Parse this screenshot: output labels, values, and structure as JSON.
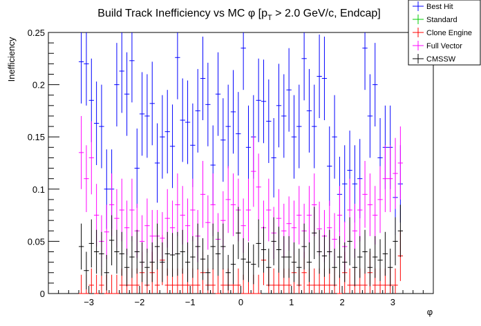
{
  "chart_data": {
    "type": "scatter",
    "title_main": "Build Track Inefficiency vs MC ",
    "title_phi": "φ",
    "title_open": " [p",
    "title_sub": "T",
    "title_rest": " > 2.0 GeV/c, Endcap]",
    "xlabel": "φ",
    "ylabel": "Inefficiency",
    "xlim": [
      -3.8,
      3.8
    ],
    "ylim": [
      0,
      0.25
    ],
    "x_ticks": [
      -3,
      -2,
      -1,
      0,
      1,
      2,
      3
    ],
    "x_tick_labels": [
      "−3",
      "−2",
      "−1",
      "0",
      "1",
      "2",
      "3"
    ],
    "y_ticks": [
      0,
      0.05,
      0.1,
      0.15,
      0.2,
      0.25
    ],
    "y_tick_labels": [
      "0",
      "0.05",
      "0.1",
      "0.15",
      "0.2",
      "0.25"
    ],
    "grid": false,
    "legend_position": "top-right",
    "legend": [
      {
        "name": "Best Hit",
        "color": "#0000ff"
      },
      {
        "name": "Standard",
        "color": "#00cc00"
      },
      {
        "name": "Clone Engine",
        "color": "#ff0000"
      },
      {
        "name": "Full Vector",
        "color": "#ff00ff"
      },
      {
        "name": "CMSSW",
        "color": "#000000"
      }
    ],
    "x": [
      -3.15,
      -3.05,
      -2.95,
      -2.85,
      -2.75,
      -2.65,
      -2.55,
      -2.45,
      -2.35,
      -2.25,
      -2.15,
      -2.05,
      -1.95,
      -1.85,
      -1.75,
      -1.65,
      -1.55,
      -1.45,
      -1.35,
      -1.25,
      -1.15,
      -1.05,
      -0.95,
      -0.85,
      -0.75,
      -0.65,
      -0.55,
      -0.45,
      -0.35,
      -0.25,
      -0.15,
      -0.05,
      0.05,
      0.15,
      0.25,
      0.35,
      0.45,
      0.55,
      0.65,
      0.75,
      0.85,
      0.95,
      1.05,
      1.15,
      1.25,
      1.35,
      1.45,
      1.55,
      1.65,
      1.75,
      1.85,
      1.95,
      2.05,
      2.15,
      2.25,
      2.35,
      2.45,
      2.55,
      2.65,
      2.75,
      2.85,
      2.95,
      3.05,
      3.15
    ],
    "x_err": 0.05,
    "series": [
      {
        "name": "Best Hit",
        "color": "#0000ff",
        "y": [
          0.222,
          0.22,
          0.185,
          0.163,
          0.16,
          0.1,
          0.1,
          0.2,
          0.213,
          0.191,
          0.223,
          0.12,
          0.172,
          0.17,
          0.182,
          0.125,
          0.15,
          0.155,
          0.141,
          0.226,
          0.166,
          0.164,
          0.142,
          0.175,
          0.206,
          0.181,
          0.123,
          0.191,
          0.147,
          0.16,
          0.174,
          0.153,
          0.235,
          0.14,
          0.15,
          0.185,
          0.184,
          0.165,
          0.13,
          0.18,
          0.17,
          0.195,
          0.15,
          0.16,
          0.225,
          0.175,
          0.16,
          0.208,
          0.206,
          0.122,
          0.15,
          0.095,
          0.105,
          0.118,
          0.105,
          0.11,
          0.235,
          0.17,
          0.2,
          0.13,
          0.14,
          0.14,
          0.092,
          0.105
        ],
        "err": [
          0.04,
          0.04,
          0.04,
          0.04,
          0.04,
          0.038,
          0.038,
          0.04,
          0.04,
          0.04,
          0.04,
          0.038,
          0.04,
          0.04,
          0.04,
          0.038,
          0.04,
          0.04,
          0.04,
          0.04,
          0.04,
          0.04,
          0.04,
          0.04,
          0.04,
          0.04,
          0.038,
          0.04,
          0.04,
          0.04,
          0.04,
          0.04,
          0.04,
          0.04,
          0.04,
          0.04,
          0.04,
          0.04,
          0.038,
          0.04,
          0.04,
          0.04,
          0.04,
          0.04,
          0.04,
          0.04,
          0.04,
          0.04,
          0.04,
          0.038,
          0.04,
          0.036,
          0.037,
          0.038,
          0.037,
          0.038,
          0.04,
          0.04,
          0.04,
          0.038,
          0.04,
          0.04,
          0.036,
          0.037
        ]
      },
      {
        "name": "Standard",
        "color": "#00cc00",
        "y": [],
        "err": []
      },
      {
        "name": "Clone Engine",
        "color": "#ff0000",
        "y": [
          0.0,
          0.0,
          0.008,
          0.0,
          0.008,
          0.0,
          0.0,
          0.0,
          0.008,
          0.008,
          0.008,
          0.008,
          0.02,
          0.008,
          0.02,
          0.008,
          0.032,
          0.008,
          0.008,
          0.008,
          0.008,
          0.008,
          0.008,
          0.008,
          0.02,
          0.008,
          0.008,
          0.0,
          0.008,
          0.008,
          0.008,
          0.008,
          0.0,
          0.0,
          0.0,
          0.0,
          0.032,
          0.008,
          0.008,
          0.008,
          0.008,
          0.008,
          0.02,
          0.008,
          0.02,
          0.008,
          0.008,
          0.008,
          0.008,
          0.008,
          0.008,
          0.0,
          0.02,
          0.008,
          0.008,
          0.008,
          0.008,
          0.02,
          0.008,
          0.008,
          0.008,
          0.008,
          0.008,
          0.036
        ],
        "err": [
          0.018,
          0.018,
          0.016,
          0.018,
          0.016,
          0.018,
          0.018,
          0.018,
          0.016,
          0.016,
          0.016,
          0.016,
          0.02,
          0.016,
          0.02,
          0.016,
          0.024,
          0.016,
          0.016,
          0.016,
          0.016,
          0.016,
          0.016,
          0.016,
          0.02,
          0.016,
          0.016,
          0.018,
          0.016,
          0.016,
          0.016,
          0.016,
          0.018,
          0.018,
          0.018,
          0.018,
          0.024,
          0.016,
          0.016,
          0.016,
          0.016,
          0.016,
          0.02,
          0.016,
          0.02,
          0.016,
          0.016,
          0.016,
          0.016,
          0.016,
          0.016,
          0.018,
          0.02,
          0.016,
          0.016,
          0.016,
          0.016,
          0.02,
          0.016,
          0.016,
          0.016,
          0.016,
          0.016,
          0.024
        ]
      },
      {
        "name": "Full Vector",
        "color": "#ff00ff",
        "y": [
          0.135,
          0.11,
          0.13,
          0.075,
          0.05,
          0.059,
          0.085,
          0.072,
          0.08,
          0.063,
          0.08,
          0.06,
          0.05,
          0.065,
          0.055,
          0.055,
          0.053,
          0.072,
          0.063,
          0.085,
          0.075,
          0.065,
          0.08,
          0.055,
          0.095,
          0.068,
          0.085,
          0.052,
          0.07,
          0.09,
          0.085,
          0.08,
          0.065,
          0.08,
          0.117,
          0.102,
          0.063,
          0.08,
          0.058,
          0.072,
          0.06,
          0.067,
          0.063,
          0.075,
          0.06,
          0.075,
          0.085,
          0.062,
          0.055,
          0.063,
          0.052,
          0.075,
          0.045,
          0.08,
          0.06,
          0.08,
          0.095,
          0.085,
          0.075,
          0.09,
          0.11,
          0.11,
          0.115,
          0.125
        ],
        "err": [
          0.035,
          0.032,
          0.035,
          0.03,
          0.025,
          0.026,
          0.03,
          0.028,
          0.03,
          0.026,
          0.03,
          0.026,
          0.025,
          0.026,
          0.025,
          0.025,
          0.025,
          0.028,
          0.026,
          0.03,
          0.028,
          0.026,
          0.03,
          0.025,
          0.032,
          0.026,
          0.03,
          0.025,
          0.028,
          0.032,
          0.03,
          0.03,
          0.026,
          0.03,
          0.034,
          0.032,
          0.026,
          0.03,
          0.025,
          0.028,
          0.026,
          0.026,
          0.026,
          0.028,
          0.026,
          0.028,
          0.03,
          0.026,
          0.025,
          0.026,
          0.025,
          0.028,
          0.024,
          0.03,
          0.026,
          0.03,
          0.032,
          0.03,
          0.028,
          0.032,
          0.032,
          0.032,
          0.034,
          0.035
        ]
      },
      {
        "name": "CMSSW",
        "color": "#000000",
        "y": [
          0.045,
          0.022,
          0.048,
          0.04,
          0.038,
          0.02,
          0.051,
          0.04,
          0.038,
          0.025,
          0.035,
          0.04,
          0.03,
          0.025,
          0.03,
          0.045,
          0.03,
          0.038,
          0.037,
          0.038,
          0.04,
          0.03,
          0.035,
          0.045,
          0.033,
          0.02,
          0.045,
          0.038,
          0.045,
          0.02,
          0.028,
          0.058,
          0.033,
          0.03,
          0.028,
          0.048,
          0.042,
          0.025,
          0.05,
          0.042,
          0.035,
          0.035,
          0.03,
          0.025,
          0.045,
          0.03,
          0.058,
          0.04,
          0.036,
          0.04,
          0.025,
          0.035,
          0.03,
          0.05,
          0.025,
          0.035,
          0.04,
          0.025,
          0.035,
          0.032,
          0.038,
          0.025,
          0.05,
          0.06
        ],
        "err": [
          0.022,
          0.018,
          0.023,
          0.021,
          0.021,
          0.017,
          0.024,
          0.021,
          0.021,
          0.018,
          0.02,
          0.021,
          0.019,
          0.018,
          0.019,
          0.022,
          0.019,
          0.021,
          0.021,
          0.021,
          0.021,
          0.019,
          0.02,
          0.022,
          0.02,
          0.017,
          0.022,
          0.021,
          0.022,
          0.017,
          0.019,
          0.025,
          0.02,
          0.019,
          0.019,
          0.023,
          0.022,
          0.018,
          0.023,
          0.022,
          0.02,
          0.02,
          0.019,
          0.018,
          0.022,
          0.019,
          0.025,
          0.021,
          0.02,
          0.021,
          0.018,
          0.02,
          0.019,
          0.023,
          0.018,
          0.02,
          0.021,
          0.018,
          0.02,
          0.02,
          0.021,
          0.018,
          0.023,
          0.025
        ]
      }
    ]
  }
}
